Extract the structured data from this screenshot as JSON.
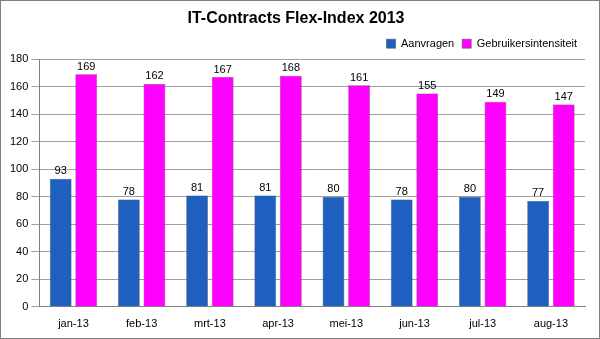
{
  "chart_data": {
    "type": "bar",
    "title": "IT-Contracts Flex-Index 2013",
    "categories": [
      "jan-13",
      "feb-13",
      "mrt-13",
      "apr-13",
      "mei-13",
      "jun-13",
      "jul-13",
      "aug-13"
    ],
    "series": [
      {
        "name": "Aanvragen",
        "color": "#1f5fc0",
        "values": [
          93,
          78,
          81,
          81,
          80,
          78,
          80,
          77
        ]
      },
      {
        "name": "Gebruikersintensiteit",
        "color": "#ff00ff",
        "values": [
          169,
          162,
          167,
          168,
          161,
          155,
          149,
          147
        ]
      }
    ],
    "ylim": [
      0,
      180
    ],
    "yticks": [
      0,
      20,
      40,
      60,
      80,
      100,
      120,
      140,
      160,
      180
    ],
    "grid": true,
    "legend": "top-right",
    "data_labels": true
  }
}
